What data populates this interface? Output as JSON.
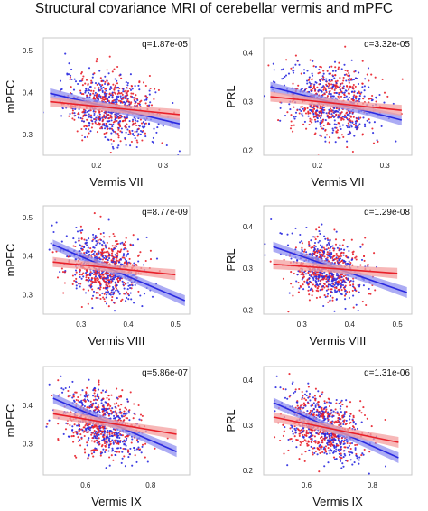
{
  "title": "Structural covariance MRI  of cerebellar vermis and mPFC",
  "colors": {
    "series_a": "#e8202a",
    "series_b": "#2a2ae0",
    "band_a": "#f4a0a0",
    "band_b": "#9090f0"
  },
  "chart_data": [
    {
      "type": "scatter",
      "xlabel": "Vermis VII",
      "ylabel": "mPFC",
      "annotation": "q=1.87e-05",
      "xlim": [
        0.12,
        0.34
      ],
      "ylim": [
        0.25,
        0.53
      ],
      "xticks": [
        0.2,
        0.3
      ],
      "yticks": [
        0.3,
        0.4,
        0.5
      ],
      "x_center": 0.22,
      "x_spread": 0.035,
      "y_center": 0.365,
      "y_spread": 0.038,
      "fits": {
        "a": [
          [
            0.13,
            0.378
          ],
          [
            0.325,
            0.347
          ]
        ],
        "b": [
          [
            0.13,
            0.398
          ],
          [
            0.325,
            0.325
          ]
        ]
      }
    },
    {
      "type": "scatter",
      "xlabel": "Vermis VII",
      "ylabel": "PRL",
      "annotation": "q=3.32e-05",
      "xlim": [
        0.12,
        0.34
      ],
      "ylim": [
        0.19,
        0.43
      ],
      "xticks": [
        0.2,
        0.3
      ],
      "yticks": [
        0.2,
        0.3,
        0.4
      ],
      "x_center": 0.22,
      "x_spread": 0.035,
      "y_center": 0.3,
      "y_spread": 0.035,
      "fits": {
        "a": [
          [
            0.13,
            0.31
          ],
          [
            0.325,
            0.282
          ]
        ],
        "b": [
          [
            0.13,
            0.33
          ],
          [
            0.325,
            0.262
          ]
        ]
      }
    },
    {
      "type": "scatter",
      "xlabel": "Vermis VIII",
      "ylabel": "mPFC",
      "annotation": "q=8.77e-09",
      "xlim": [
        0.22,
        0.53
      ],
      "ylim": [
        0.25,
        0.53
      ],
      "xticks": [
        0.3,
        0.4,
        0.5
      ],
      "yticks": [
        0.3,
        0.4,
        0.5
      ],
      "x_center": 0.35,
      "x_spread": 0.04,
      "y_center": 0.37,
      "y_spread": 0.04,
      "fits": {
        "a": [
          [
            0.24,
            0.385
          ],
          [
            0.5,
            0.352
          ]
        ],
        "b": [
          [
            0.24,
            0.43
          ],
          [
            0.52,
            0.285
          ]
        ]
      }
    },
    {
      "type": "scatter",
      "xlabel": "Vermis VIII",
      "ylabel": "PRL",
      "annotation": "q=1.29e-08",
      "xlim": [
        0.22,
        0.53
      ],
      "ylim": [
        0.19,
        0.45
      ],
      "xticks": [
        0.3,
        0.4,
        0.5
      ],
      "yticks": [
        0.2,
        0.3,
        0.4
      ],
      "x_center": 0.35,
      "x_spread": 0.04,
      "y_center": 0.3,
      "y_spread": 0.036,
      "fits": {
        "a": [
          [
            0.24,
            0.31
          ],
          [
            0.5,
            0.288
          ]
        ],
        "b": [
          [
            0.24,
            0.352
          ],
          [
            0.52,
            0.242
          ]
        ]
      }
    },
    {
      "type": "scatter",
      "xlabel": "Vermis IX",
      "ylabel": "mPFC",
      "annotation": "q=5.86e-07",
      "xlim": [
        0.47,
        0.92
      ],
      "ylim": [
        0.22,
        0.5
      ],
      "xticks": [
        0.6,
        0.8
      ],
      "yticks": [
        0.3,
        0.4
      ],
      "x_center": 0.65,
      "x_spread": 0.06,
      "y_center": 0.355,
      "y_spread": 0.04,
      "fits": {
        "a": [
          [
            0.5,
            0.378
          ],
          [
            0.88,
            0.325
          ]
        ],
        "b": [
          [
            0.5,
            0.418
          ],
          [
            0.88,
            0.28
          ]
        ]
      }
    },
    {
      "type": "scatter",
      "xlabel": "Vermis IX",
      "ylabel": "PRL",
      "annotation": "q=1.31e-06",
      "xlim": [
        0.47,
        0.92
      ],
      "ylim": [
        0.19,
        0.43
      ],
      "xticks": [
        0.6,
        0.8
      ],
      "yticks": [
        0.2,
        0.3,
        0.4
      ],
      "x_center": 0.65,
      "x_spread": 0.06,
      "y_center": 0.295,
      "y_spread": 0.034,
      "fits": {
        "a": [
          [
            0.5,
            0.318
          ],
          [
            0.88,
            0.262
          ]
        ],
        "b": [
          [
            0.5,
            0.35
          ],
          [
            0.88,
            0.228
          ]
        ]
      }
    }
  ]
}
